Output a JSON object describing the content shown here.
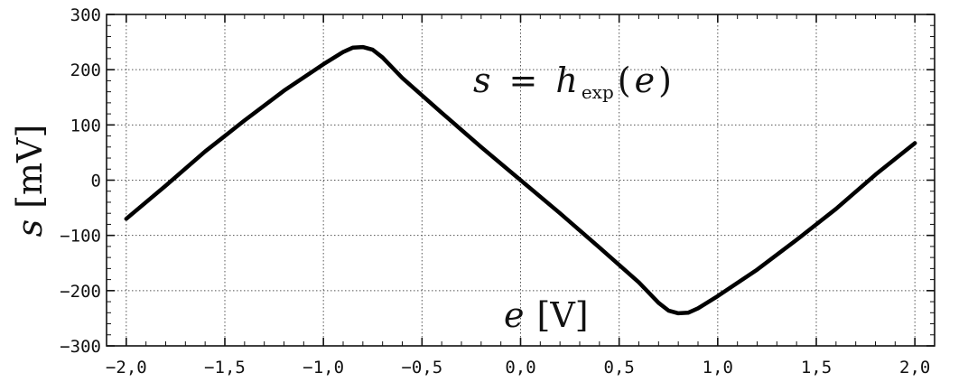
{
  "chart_data": {
    "type": "line",
    "title": "",
    "xlabel": {
      "symbol": "e",
      "unit": "[V]"
    },
    "ylabel": {
      "symbol": "s",
      "unit": "[mV]"
    },
    "annotation": {
      "lhs": "s",
      "eq": "=",
      "func": "h",
      "sub": "exp",
      "arg_open": "(",
      "arg": "e",
      "arg_close": ")"
    },
    "xlim": [
      -2.1,
      2.1
    ],
    "ylim": [
      -300,
      300
    ],
    "x_ticks": [
      -2.0,
      -1.5,
      -1.0,
      -0.5,
      0.0,
      0.5,
      1.0,
      1.5,
      2.0
    ],
    "x_tick_labels": [
      "−2,0",
      "−1,5",
      "−1,0",
      "−0,5",
      "0,0",
      "0,5",
      "1,0",
      "1,5",
      "2,0"
    ],
    "y_ticks": [
      300,
      200,
      100,
      0,
      -100,
      -200,
      -300
    ],
    "y_tick_labels": [
      "300",
      "200",
      "100",
      "0",
      "−100",
      "−200",
      "−300"
    ],
    "grid": true,
    "series": [
      {
        "color": "#000000",
        "x": [
          -2.0,
          -1.8,
          -1.6,
          -1.4,
          -1.2,
          -1.0,
          -0.9,
          -0.85,
          -0.8,
          -0.75,
          -0.7,
          -0.6,
          -0.4,
          -0.2,
          0.0,
          0.2,
          0.4,
          0.6,
          0.7,
          0.75,
          0.8,
          0.85,
          0.9,
          1.0,
          1.2,
          1.4,
          1.6,
          1.8,
          2.0
        ],
        "y": [
          -70,
          -10,
          52,
          108,
          162,
          210,
          232,
          240,
          241,
          236,
          222,
          185,
          122,
          60,
          0,
          -60,
          -122,
          -185,
          -222,
          -236,
          -241,
          -240,
          -232,
          -210,
          -162,
          -108,
          -52,
          10,
          67
        ]
      }
    ]
  }
}
